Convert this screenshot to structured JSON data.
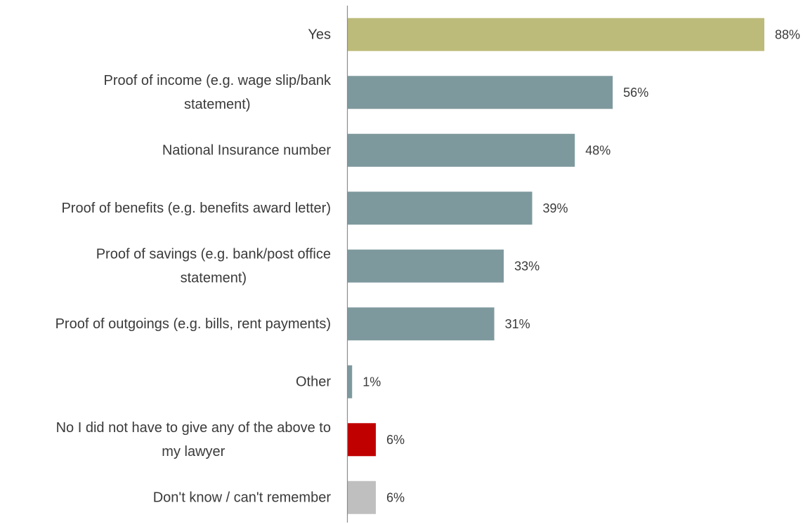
{
  "chart_data": {
    "type": "bar",
    "orientation": "horizontal",
    "title": "",
    "xlabel": "",
    "ylabel": "",
    "xlim": [
      0,
      100
    ],
    "grid": false,
    "legend": "none",
    "categories": [
      [
        "Yes"
      ],
      [
        "Proof of income (e.g. wage slip/bank",
        "statement)"
      ],
      [
        "National Insurance number"
      ],
      [
        "Proof of benefits (e.g. benefits award letter)"
      ],
      [
        "Proof of savings (e.g. bank/post office",
        "statement)"
      ],
      [
        "Proof of outgoings (e.g. bills, rent payments)"
      ],
      [
        "Other"
      ],
      [
        "No I did not have to give any of the above to",
        "my lawyer"
      ],
      [
        "Don't know / can't remember"
      ]
    ],
    "values": [
      88,
      56,
      48,
      39,
      33,
      31,
      1,
      6,
      6
    ],
    "value_labels": [
      "88%",
      "56%",
      "48%",
      "39%",
      "33%",
      "31%",
      "1%",
      "6%",
      "6%"
    ],
    "colors": [
      "#BDBB7A",
      "#7E999D",
      "#7E999D",
      "#7E999D",
      "#7E999D",
      "#7E999D",
      "#7E999D",
      "#C00000",
      "#BFBFBF"
    ]
  }
}
